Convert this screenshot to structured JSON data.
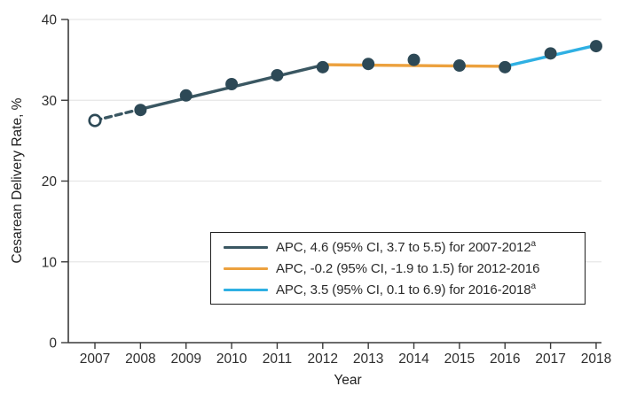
{
  "figure": {
    "y_axis_title": "Cesarean Delivery Rate, %",
    "x_axis_title": "Year"
  },
  "colors": {
    "trend_2007_2012": "#3a5762",
    "trend_2012_2016": "#eca13e",
    "trend_2016_2018": "#2fb0e3",
    "marker": "#2d4956",
    "grid": "#e6e6e6",
    "axis": "#3a3a3a"
  },
  "chart_data": {
    "type": "line",
    "title": "",
    "xlabel": "Year",
    "ylabel": "Cesarean Delivery Rate, %",
    "ylim": [
      0,
      40
    ],
    "yticks": [
      0,
      10,
      20,
      30,
      40
    ],
    "grid": "horizontal",
    "legend_position": "lower-center-right",
    "points": [
      {
        "year": 2007,
        "value": 27.5,
        "open": true
      },
      {
        "year": 2008,
        "value": 28.8,
        "open": false
      },
      {
        "year": 2009,
        "value": 30.6,
        "open": false
      },
      {
        "year": 2010,
        "value": 32.0,
        "open": false
      },
      {
        "year": 2011,
        "value": 33.1,
        "open": false
      },
      {
        "year": 2012,
        "value": 34.1,
        "open": false
      },
      {
        "year": 2013,
        "value": 34.5,
        "open": false
      },
      {
        "year": 2014,
        "value": 35.0,
        "open": false
      },
      {
        "year": 2015,
        "value": 34.3,
        "open": false
      },
      {
        "year": 2016,
        "value": 34.1,
        "open": false
      },
      {
        "year": 2017,
        "value": 35.8,
        "open": false
      },
      {
        "year": 2018,
        "value": 36.7,
        "open": false
      }
    ],
    "segments": [
      {
        "period": "2007-2008",
        "style": "dashed",
        "color": "#3a5762",
        "from": {
          "year": 2007,
          "value": 27.5
        },
        "to": {
          "year": 2008,
          "value": 28.9
        }
      },
      {
        "period": "2008-2012",
        "style": "solid",
        "color": "#3a5762",
        "from": {
          "year": 2008,
          "value": 28.9
        },
        "to": {
          "year": 2012,
          "value": 34.35
        }
      },
      {
        "period": "2012-2016",
        "style": "solid",
        "color": "#eca13e",
        "from": {
          "year": 2012,
          "value": 34.4
        },
        "to": {
          "year": 2016,
          "value": 34.2
        }
      },
      {
        "period": "2016-2018",
        "style": "solid",
        "color": "#2fb0e3",
        "from": {
          "year": 2016,
          "value": 34.2
        },
        "to": {
          "year": 2018,
          "value": 36.8
        }
      }
    ]
  },
  "legend": {
    "entries": [
      {
        "text": "APC, 4.6 (95% CI, 3.7 to 5.5) for 2007-2012",
        "sup": "a",
        "color": "#3a5762"
      },
      {
        "text": "APC, -0.2 (95% CI, -1.9 to 1.5) for 2012-2016",
        "sup": "",
        "color": "#eca13e"
      },
      {
        "text": "APC, 3.5 (95% CI, 0.1 to 6.9) for 2016-2018",
        "sup": "a",
        "color": "#2fb0e3"
      }
    ]
  }
}
